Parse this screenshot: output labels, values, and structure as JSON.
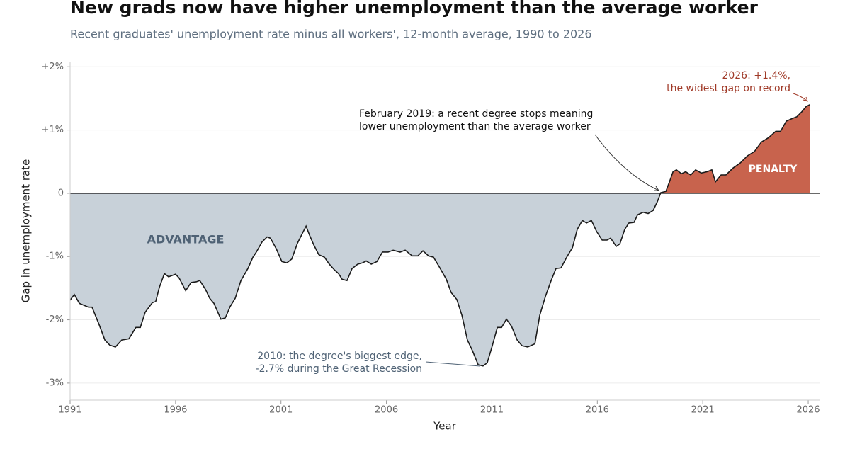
{
  "chart_data": {
    "type": "area",
    "title": "New grads now have higher unemployment than the average worker",
    "subtitle": "Recent graduates' unemployment rate minus all workers', 12-month average, 1990 to 2026",
    "x_label": "Year",
    "y_label": "Gap in unemployment rate",
    "xlim": [
      1991,
      2026.57
    ],
    "ylim": [
      -3.27,
      2.07
    ],
    "xticks": [
      1991,
      1996,
      2001,
      2006,
      2011,
      2016,
      2021,
      2026
    ],
    "yticks": [
      {
        "value": 2,
        "label": "+2%"
      },
      {
        "value": 1,
        "label": "+1%"
      },
      0,
      {
        "value": -1,
        "label": "-1%"
      },
      {
        "value": -2,
        "label": "-2%"
      },
      {
        "value": -3,
        "label": "-3%"
      }
    ],
    "grid": true,
    "positive_color": "#c8634d",
    "negative_color": "#c8d1d9",
    "x": [
      1991,
      1991.2,
      1991.44,
      1991.87,
      1992.04,
      1992.38,
      1992.65,
      1992.88,
      1993.15,
      1993.45,
      1993.79,
      1994.12,
      1994.33,
      1994.56,
      1994.9,
      1995.06,
      1995.23,
      1995.47,
      1995.67,
      1996,
      1996.17,
      1996.48,
      1996.74,
      1996.98,
      1997.15,
      1997.42,
      1997.62,
      1997.82,
      1998.15,
      1998.36,
      1998.59,
      1998.83,
      1999.1,
      1999.43,
      1999.67,
      1999.83,
      2000.1,
      2000.34,
      2000.5,
      2000.78,
      2001.04,
      2001.28,
      2001.51,
      2001.78,
      2002.02,
      2002.19,
      2002.35,
      2002.56,
      2002.79,
      2003.06,
      2003.29,
      2003.53,
      2003.73,
      2003.9,
      2004.13,
      2004.37,
      2004.64,
      2004.87,
      2005.04,
      2005.28,
      2005.55,
      2005.81,
      2006.08,
      2006.32,
      2006.65,
      2006.89,
      2007.22,
      2007.49,
      2007.73,
      2008,
      2008.23,
      2008.5,
      2008.84,
      2009.07,
      2009.34,
      2009.58,
      2009.84,
      2010.08,
      2010.35,
      2010.58,
      2010.78,
      2011.02,
      2011.26,
      2011.46,
      2011.69,
      2011.93,
      2012.2,
      2012.43,
      2012.7,
      2013.04,
      2013.27,
      2013.54,
      2013.81,
      2014.04,
      2014.28,
      2014.55,
      2014.82,
      2015.05,
      2015.29,
      2015.49,
      2015.72,
      2015.96,
      2016.23,
      2016.46,
      2016.63,
      2016.9,
      2017.07,
      2017.3,
      2017.5,
      2017.74,
      2017.91,
      2018.18,
      2018.41,
      2018.65,
      2018.85,
      2019.01,
      2019.25,
      2019.42,
      2019.59,
      2019.75,
      2019.99,
      2020.19,
      2020.43,
      2020.66,
      2020.93,
      2021.2,
      2021.43,
      2021.6,
      2021.87,
      2022.1,
      2022.44,
      2022.78,
      2023.11,
      2023.45,
      2023.78,
      2024.12,
      2024.46,
      2024.69,
      2024.96,
      2025.23,
      2025.46,
      2025.7,
      2025.9,
      2026.07
    ],
    "series": [
      {
        "name": "Gap",
        "color": "#1a1a1a",
        "values": [
          -1.69,
          -1.6,
          -1.74,
          -1.8,
          -1.8,
          -2.08,
          -2.32,
          -2.4,
          -2.43,
          -2.32,
          -2.3,
          -2.12,
          -2.12,
          -1.88,
          -1.73,
          -1.71,
          -1.49,
          -1.27,
          -1.32,
          -1.28,
          -1.34,
          -1.54,
          -1.41,
          -1.4,
          -1.38,
          -1.52,
          -1.66,
          -1.74,
          -1.99,
          -1.97,
          -1.79,
          -1.66,
          -1.38,
          -1.19,
          -1.01,
          -0.93,
          -0.77,
          -0.69,
          -0.71,
          -0.88,
          -1.08,
          -1.1,
          -1.04,
          -0.79,
          -0.63,
          -0.52,
          -0.66,
          -0.82,
          -0.97,
          -1.01,
          -1.12,
          -1.21,
          -1.27,
          -1.36,
          -1.38,
          -1.19,
          -1.12,
          -1.1,
          -1.07,
          -1.12,
          -1.08,
          -0.93,
          -0.93,
          -0.9,
          -0.93,
          -0.9,
          -0.99,
          -0.99,
          -0.91,
          -0.99,
          -1.01,
          -1.16,
          -1.36,
          -1.57,
          -1.68,
          -1.93,
          -2.32,
          -2.49,
          -2.71,
          -2.73,
          -2.68,
          -2.41,
          -2.12,
          -2.12,
          -1.99,
          -2.1,
          -2.32,
          -2.41,
          -2.43,
          -2.38,
          -1.93,
          -1.63,
          -1.38,
          -1.19,
          -1.18,
          -1.01,
          -0.86,
          -0.57,
          -0.43,
          -0.47,
          -0.43,
          -0.6,
          -0.74,
          -0.74,
          -0.71,
          -0.84,
          -0.8,
          -0.57,
          -0.47,
          -0.46,
          -0.34,
          -0.3,
          -0.32,
          -0.27,
          -0.13,
          0.01,
          0.03,
          0.18,
          0.34,
          0.37,
          0.31,
          0.34,
          0.29,
          0.37,
          0.32,
          0.34,
          0.37,
          0.18,
          0.29,
          0.29,
          0.4,
          0.48,
          0.59,
          0.66,
          0.81,
          0.88,
          0.98,
          0.98,
          1.14,
          1.18,
          1.21,
          1.29,
          1.37,
          1.4
        ]
      }
    ],
    "region_labels": [
      "ADVANTAGE",
      "PENALTY"
    ],
    "annotations": [
      {
        "lines": [
          "2026: +1.4%,",
          "the widest gap on record"
        ]
      },
      {
        "lines": [
          "February 2019: a recent degree stops meaning",
          "lower unemployment than the average worker"
        ]
      },
      {
        "lines": [
          "2010: the degree's biggest edge,",
          "-2.7% during the Great Recession"
        ]
      }
    ]
  }
}
